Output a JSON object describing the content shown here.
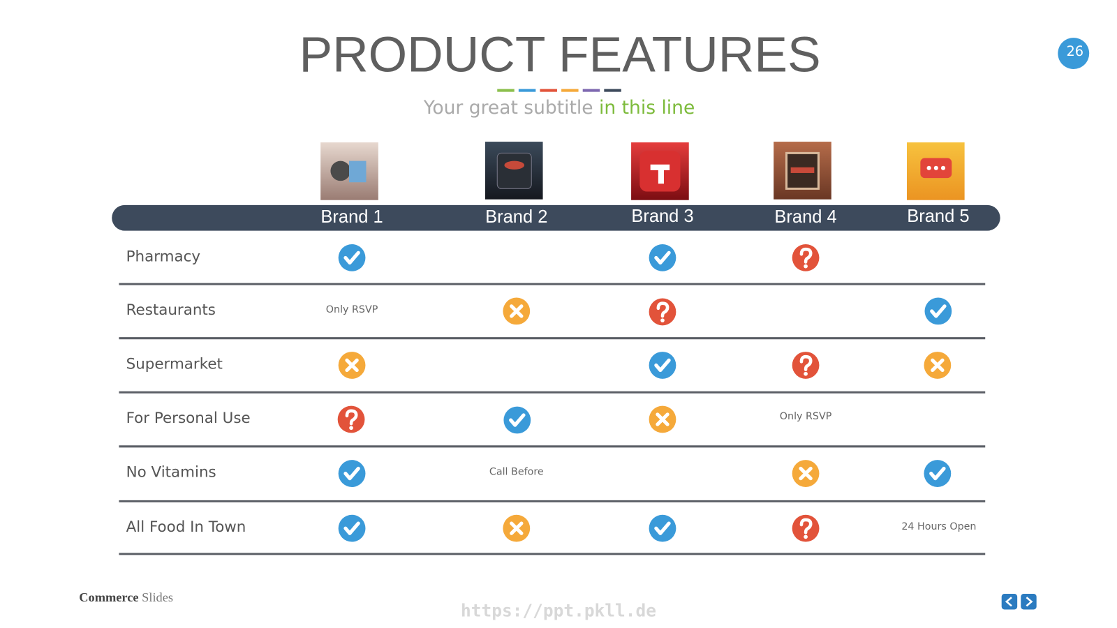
{
  "header": {
    "title": "PRODUCT FEATURES",
    "subtitle": "Your great subtitle",
    "subtitle_highlight": "in this line",
    "page_number": "26"
  },
  "table": {
    "columns": [
      "Brand 1",
      "Brand 2",
      "Brand 3",
      "Brand 4",
      "Brand 5"
    ],
    "rows": [
      {
        "label": "Pharmacy",
        "cells": [
          null,
          null,
          null,
          null,
          null
        ]
      },
      {
        "label": "Restaurants",
        "cells": [
          "Only RSVP",
          null,
          null,
          null,
          null
        ]
      },
      {
        "label": "Supermarket",
        "cells": [
          null,
          null,
          null,
          null,
          null
        ]
      },
      {
        "label": "For Personal Use",
        "cells": [
          null,
          null,
          null,
          "Only RSVP",
          null
        ]
      },
      {
        "label": "No Vitamins",
        "cells": [
          null,
          "Call Before",
          null,
          null,
          null
        ]
      },
      {
        "label": "All Food In Town",
        "cells": [
          null,
          null,
          null,
          null,
          "24 Hours Open"
        ]
      }
    ]
  },
  "footer": {
    "brand_bold": "Commerce",
    "brand_light": "Slides",
    "watermark": "https://ppt.pkll.de"
  }
}
